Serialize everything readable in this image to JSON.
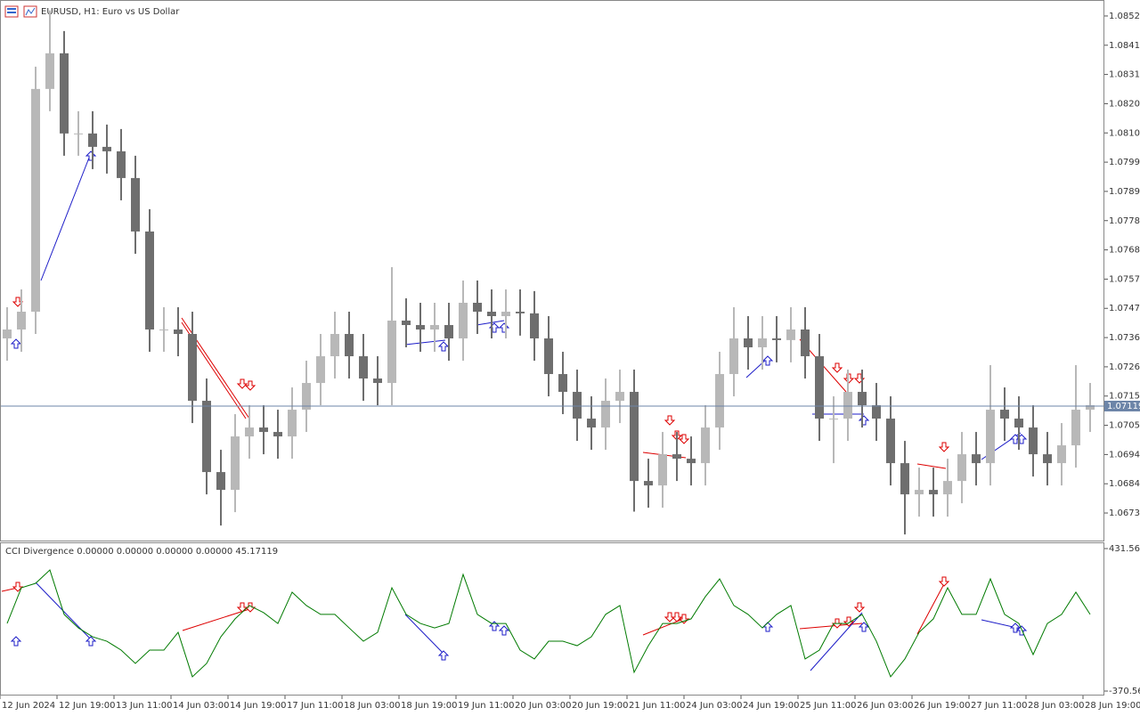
{
  "chart_data": [
    {
      "type": "candlestick",
      "title": "EURUSD, H1:  Euro vs US Dollar",
      "categories": [
        "12 Jun 2024",
        null,
        null,
        null,
        "12 Jun 19:00",
        null,
        null,
        null,
        "13 Jun 11:00",
        null,
        null,
        null,
        "14 Jun 03:00",
        null,
        null,
        null,
        "14 Jun 19:00",
        null,
        null,
        null,
        "17 Jun 11:00",
        null,
        null,
        null,
        "18 Jun 03:00",
        null,
        null,
        null,
        "18 Jun 19:00",
        null,
        null,
        null,
        "19 Jun 11:00",
        null,
        null,
        null,
        "20 Jun 03:00",
        null,
        null,
        null,
        "20 Jun 19:00",
        null,
        null,
        null,
        "21 Jun 11:00",
        null,
        null,
        null,
        "24 Jun 03:00",
        null,
        null,
        null,
        "24 Jun 19:00",
        null,
        null,
        null,
        "25 Jun 11:00",
        null,
        null,
        null,
        "26 Jun 03:00",
        null,
        null,
        null,
        "26 Jun 19:00",
        null,
        null,
        null,
        "27 Jun 11:00",
        null,
        null,
        null,
        "28 Jun 03:00",
        null,
        null,
        null,
        "28 Jun 19:00"
      ],
      "open": [
        1.07362,
        1.07394,
        1.07458,
        1.08258,
        1.08386,
        1.08098,
        1.08098,
        1.0805,
        1.08034,
        1.07938,
        1.07746,
        1.07394,
        1.07394,
        1.07378,
        1.07138,
        1.06882,
        1.06818,
        1.0701,
        1.07042,
        1.07026,
        1.0701,
        1.07106,
        1.07202,
        1.07298,
        1.07378,
        1.07298,
        1.07218,
        1.07202,
        1.07426,
        1.0741,
        1.07394,
        1.0741,
        1.07362,
        1.0749,
        1.07458,
        1.07442,
        1.07458,
        1.07452,
        1.07362,
        1.07234,
        1.0717,
        1.07074,
        1.07042,
        1.07138,
        1.0717,
        1.0685,
        1.06834,
        1.06946,
        1.0693,
        1.06914,
        1.07042,
        1.07234,
        1.07362,
        1.0733,
        1.07362,
        1.07356,
        1.07394,
        1.07298,
        1.07074,
        1.07074,
        1.0717,
        1.07122,
        1.07074,
        1.06914,
        1.06802,
        1.06818,
        1.06802,
        1.0685,
        1.06946,
        1.06914,
        1.07106,
        1.07074,
        1.07042,
        1.06946,
        1.06914,
        1.06978,
        1.07106
      ],
      "high": [
        1.07474,
        1.07538,
        1.08338,
        1.0854,
        1.08466,
        1.08178,
        1.08178,
        1.0813,
        1.08114,
        1.08018,
        1.07826,
        1.07474,
        1.07474,
        1.07458,
        1.07218,
        1.06962,
        1.0709,
        1.07122,
        1.07122,
        1.07106,
        1.07186,
        1.07282,
        1.07378,
        1.07458,
        1.07458,
        1.07378,
        1.07298,
        1.07618,
        1.07506,
        1.0749,
        1.0749,
        1.0749,
        1.0757,
        1.0757,
        1.07538,
        1.07538,
        1.07538,
        1.07532,
        1.07442,
        1.07314,
        1.0725,
        1.07154,
        1.07218,
        1.0725,
        1.0725,
        1.0693,
        1.07026,
        1.07026,
        1.0701,
        1.07122,
        1.07314,
        1.07474,
        1.07442,
        1.07442,
        1.07442,
        1.07474,
        1.07474,
        1.07378,
        1.07154,
        1.0725,
        1.0725,
        1.07202,
        1.07154,
        1.06994,
        1.06898,
        1.06898,
        1.0693,
        1.07026,
        1.07026,
        1.07266,
        1.07186,
        1.07154,
        1.07122,
        1.07026,
        1.07058,
        1.07266,
        1.07202
      ],
      "low": [
        1.07282,
        1.07314,
        1.07378,
        1.08178,
        1.08018,
        1.08018,
        1.0797,
        1.07954,
        1.07858,
        1.07666,
        1.07314,
        1.07314,
        1.07298,
        1.07058,
        1.06802,
        1.0669,
        1.06738,
        1.0693,
        1.06946,
        1.0693,
        1.0693,
        1.07026,
        1.07122,
        1.07218,
        1.07218,
        1.07138,
        1.07122,
        1.07122,
        1.0733,
        1.07314,
        1.07314,
        1.07282,
        1.07282,
        1.07378,
        1.07362,
        1.07362,
        1.07372,
        1.07282,
        1.07154,
        1.0709,
        1.06994,
        1.06962,
        1.06962,
        1.07058,
        1.0674,
        1.06754,
        1.06754,
        1.0685,
        1.06834,
        1.06834,
        1.06962,
        1.07154,
        1.0725,
        1.0725,
        1.07276,
        1.07276,
        1.07218,
        1.06994,
        1.06914,
        1.06994,
        1.07042,
        1.06994,
        1.06834,
        1.06658,
        1.06722,
        1.06722,
        1.06722,
        1.0677,
        1.06834,
        1.06834,
        1.06994,
        1.06962,
        1.06866,
        1.06834,
        1.06834,
        1.06898,
        1.07026
      ],
      "close": [
        1.07394,
        1.07458,
        1.08258,
        1.08386,
        1.08098,
        1.08098,
        1.0805,
        1.08034,
        1.07938,
        1.07746,
        1.07394,
        1.07394,
        1.07378,
        1.07138,
        1.06882,
        1.06818,
        1.0701,
        1.07042,
        1.07026,
        1.0701,
        1.07106,
        1.07202,
        1.07298,
        1.07378,
        1.07298,
        1.07218,
        1.07202,
        1.07426,
        1.0741,
        1.07394,
        1.0741,
        1.07362,
        1.0749,
        1.07458,
        1.07442,
        1.07458,
        1.07452,
        1.07362,
        1.07234,
        1.0717,
        1.07074,
        1.07042,
        1.07138,
        1.0717,
        1.0685,
        1.06834,
        1.06946,
        1.0693,
        1.06914,
        1.07042,
        1.07234,
        1.07362,
        1.0733,
        1.07362,
        1.07356,
        1.07394,
        1.07298,
        1.07074,
        1.07074,
        1.0717,
        1.07122,
        1.07074,
        1.06914,
        1.06802,
        1.06818,
        1.06802,
        1.0685,
        1.06946,
        1.06914,
        1.07106,
        1.07074,
        1.07042,
        1.06946,
        1.06914,
        1.06978,
        1.07106,
        1.07122
      ],
      "up_color": "#b8b8b8",
      "down_color": "#6e6e6e",
      "ylim": [
        1.06636,
        1.08571
      ],
      "yticks": [
        {
          "value": 1.0852,
          "label": "1.08520"
        },
        {
          "value": 1.08415,
          "label": "1.08415"
        },
        {
          "value": 1.0831,
          "label": "1.08310"
        },
        {
          "value": 1.08205,
          "label": "1.08205"
        },
        {
          "value": 1.081,
          "label": "1.08100"
        },
        {
          "value": 1.07995,
          "label": "1.07995"
        },
        {
          "value": 1.0789,
          "label": "1.07890"
        },
        {
          "value": 1.07785,
          "label": "1.07785"
        },
        {
          "value": 1.0768,
          "label": "1.07680"
        },
        {
          "value": 1.07575,
          "label": "1.07575"
        },
        {
          "value": 1.0747,
          "label": "1.07470"
        },
        {
          "value": 1.07365,
          "label": "1.07365"
        },
        {
          "value": 1.0726,
          "label": "1.07260"
        },
        {
          "value": 1.07155,
          "label": "1.07155"
        },
        {
          "value": 1.0705,
          "label": "1.07050"
        },
        {
          "value": 1.06945,
          "label": "1.06945"
        },
        {
          "value": 1.0684,
          "label": "1.06840"
        },
        {
          "value": 1.06735,
          "label": "1.06735"
        }
      ],
      "last_price": 1.07119,
      "last_price_color": "#6d85a8"
    },
    {
      "type": "line",
      "title": "CCI Divergence 0.00000 0.00000 0.00000 0.00000 45.17119",
      "series": [
        {
          "color": "#007a00",
          "values": [
            10,
            211,
            236,
            311,
            61,
            -15,
            -65,
            -90,
            -140,
            -215,
            -140,
            -140,
            -40,
            -290,
            -215,
            -65,
            36,
            111,
            71,
            10,
            186,
            111,
            61,
            61,
            -15,
            -90,
            -40,
            211,
            61,
            10,
            -15,
            10,
            286,
            61,
            10,
            10,
            -140,
            -190,
            -90,
            -90,
            -115,
            -65,
            61,
            111,
            -265,
            -115,
            10,
            10,
            36,
            161,
            261,
            111,
            61,
            -15,
            61,
            111,
            -190,
            -140,
            10,
            10,
            61,
            -90,
            -290,
            -190,
            -40,
            36,
            211,
            61,
            61,
            261,
            61,
            10,
            -165,
            10,
            61,
            186,
            61
          ]
        }
      ],
      "ylim": [
        -390.6,
        461.6
      ],
      "yticks": [
        431.565,
        -370.565
      ]
    }
  ]
}
